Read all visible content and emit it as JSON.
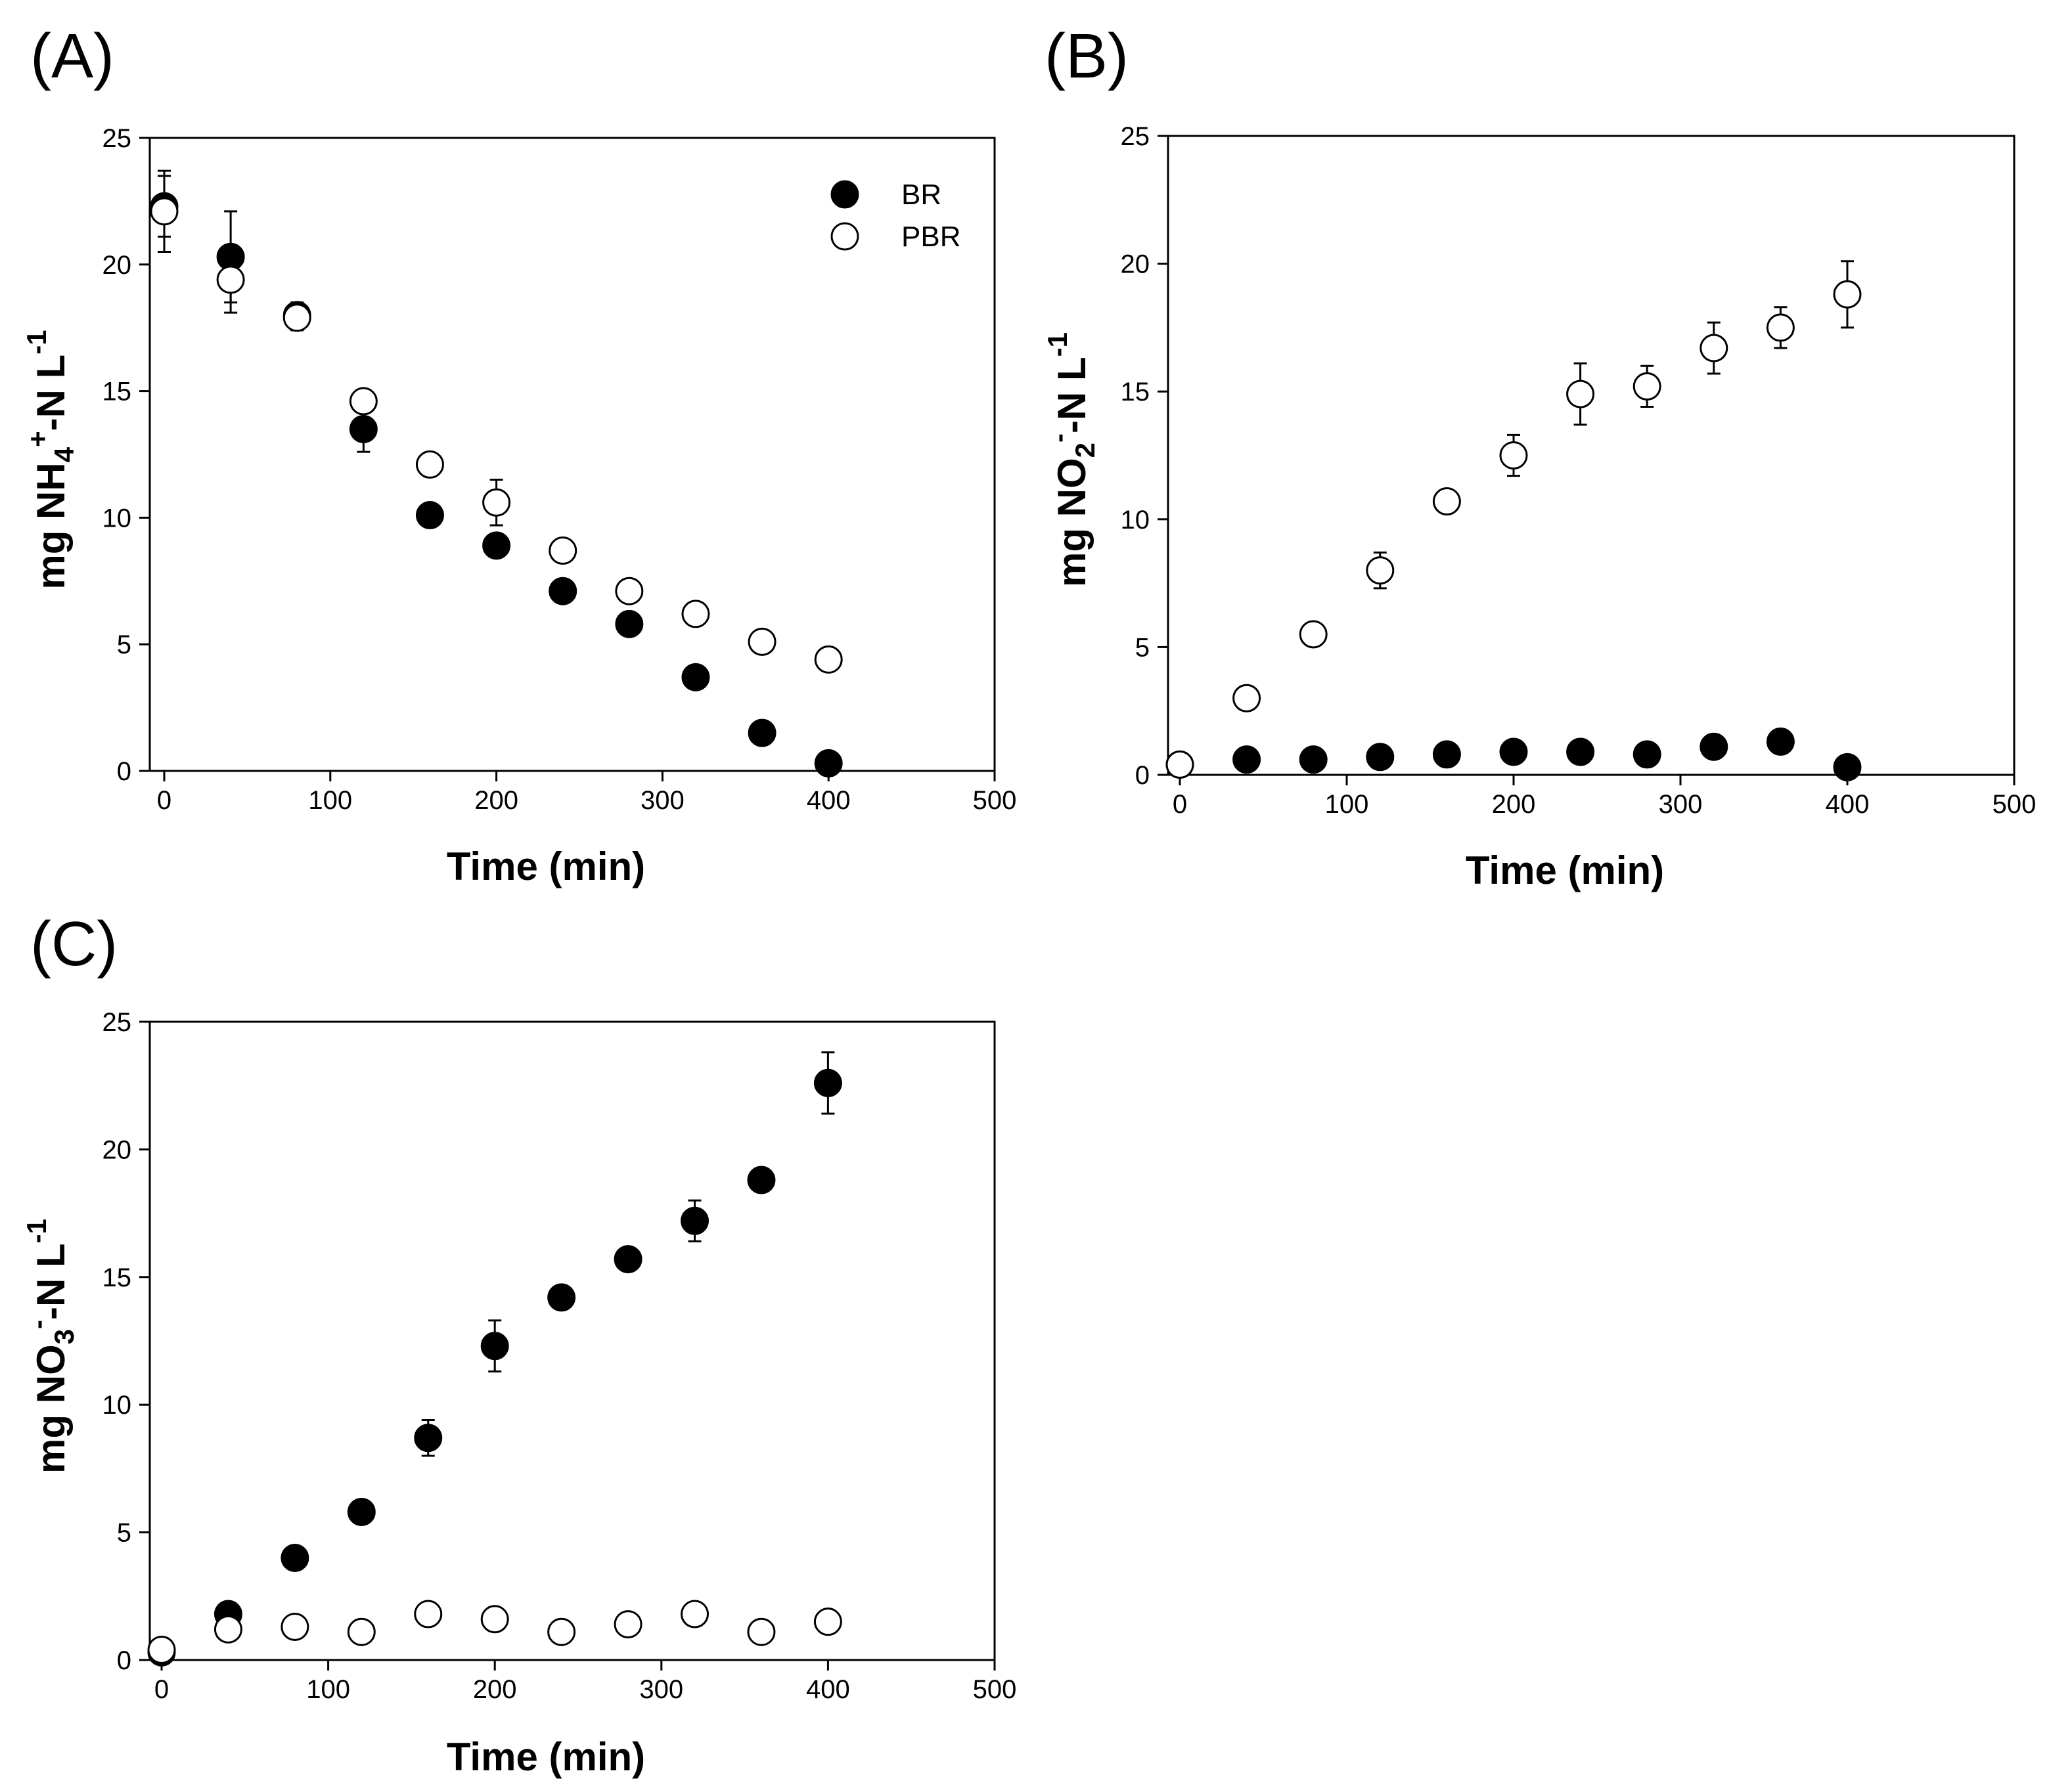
{
  "chart_data": [
    {
      "type": "scatter",
      "panel_label": "(A)",
      "xlabel": "Time (min)",
      "ylabel": {
        "prefix": "mg NH",
        "sub": "4",
        "sup": "+",
        "mid": "-N L",
        "sup2": "-1"
      },
      "xlim": [
        0,
        500
      ],
      "ylim": [
        0,
        25
      ],
      "xticks": [
        "0",
        "100",
        "200",
        "300",
        "400",
        "500"
      ],
      "yticks": [
        "0",
        "5",
        "10",
        "15",
        "20",
        "25"
      ],
      "legend": {
        "position": "top-right",
        "entries": [
          "BR",
          "PBR"
        ]
      },
      "series": [
        {
          "name": "BR",
          "marker": "filled-circle",
          "x": [
            0,
            40,
            80,
            120,
            160,
            200,
            240,
            280,
            320,
            360,
            400
          ],
          "y": [
            22.3,
            20.3,
            18.0,
            13.5,
            10.1,
            8.9,
            7.1,
            5.8,
            3.7,
            1.5,
            0.3
          ],
          "err": [
            1.2,
            1.8,
            0.5,
            0.9,
            0,
            0,
            0,
            0,
            0,
            0,
            0
          ]
        },
        {
          "name": "PBR",
          "marker": "open-circle",
          "x": [
            0,
            40,
            80,
            120,
            160,
            200,
            240,
            280,
            320,
            360,
            400
          ],
          "y": [
            22.1,
            19.4,
            17.9,
            14.6,
            12.1,
            10.6,
            8.7,
            7.1,
            6.2,
            5.1,
            4.4
          ],
          "err": [
            1.6,
            1.3,
            0.5,
            0,
            0,
            0.9,
            0,
            0,
            0,
            0,
            0
          ]
        }
      ]
    },
    {
      "type": "scatter",
      "panel_label": "(B)",
      "xlabel": "Time (min)",
      "ylabel": {
        "prefix": "mg NO",
        "sub": "2",
        "sup": "-",
        "mid": "-N L",
        "sup2": "-1"
      },
      "xlim": [
        0,
        500
      ],
      "ylim": [
        0,
        25
      ],
      "xticks": [
        "0",
        "100",
        "200",
        "300",
        "400",
        "500"
      ],
      "yticks": [
        "0",
        "5",
        "10",
        "15",
        "20",
        "25"
      ],
      "series": [
        {
          "name": "BR",
          "marker": "filled-circle",
          "x": [
            0,
            40,
            80,
            120,
            160,
            200,
            240,
            280,
            320,
            360,
            400
          ],
          "y": [
            0.4,
            0.6,
            0.6,
            0.7,
            0.8,
            0.9,
            0.9,
            0.8,
            1.1,
            1.3,
            0.3
          ],
          "err": [
            0,
            0,
            0,
            0,
            0,
            0,
            0,
            0,
            0,
            0,
            0
          ]
        },
        {
          "name": "PBR",
          "marker": "open-circle",
          "x": [
            0,
            40,
            80,
            120,
            160,
            200,
            240,
            280,
            320,
            360,
            400
          ],
          "y": [
            0.4,
            3.0,
            5.5,
            8.0,
            10.7,
            12.5,
            14.9,
            15.2,
            16.7,
            17.5,
            18.8
          ],
          "err": [
            0,
            0,
            0,
            0.7,
            0,
            0.8,
            1.2,
            0.8,
            1.0,
            0.8,
            1.3
          ]
        }
      ]
    },
    {
      "type": "scatter",
      "panel_label": "(C)",
      "xlabel": "Time (min)",
      "ylabel": {
        "prefix": "mg NO",
        "sub": "3",
        "sup": "-",
        "mid": "-N L",
        "sup2": "-1"
      },
      "xlim": [
        0,
        500
      ],
      "ylim": [
        0,
        25
      ],
      "xticks": [
        "0",
        "100",
        "200",
        "300",
        "400",
        "500"
      ],
      "yticks": [
        "0",
        "5",
        "10",
        "15",
        "20",
        "25"
      ],
      "series": [
        {
          "name": "BR",
          "marker": "filled-circle",
          "x": [
            0,
            40,
            80,
            120,
            160,
            200,
            240,
            280,
            320,
            360,
            400
          ],
          "y": [
            0.3,
            1.8,
            4.0,
            5.8,
            8.7,
            12.3,
            14.2,
            15.7,
            17.2,
            18.8,
            22.6
          ],
          "err": [
            0,
            0,
            0,
            0,
            0.7,
            1.0,
            0,
            0,
            0.8,
            0,
            1.2
          ]
        },
        {
          "name": "PBR",
          "marker": "open-circle",
          "x": [
            0,
            40,
            80,
            120,
            160,
            200,
            240,
            280,
            320,
            360,
            400
          ],
          "y": [
            0.4,
            1.2,
            1.3,
            1.1,
            1.8,
            1.6,
            1.1,
            1.4,
            1.8,
            1.1,
            1.5
          ],
          "err": [
            0,
            0,
            0,
            0,
            0,
            0,
            0,
            0,
            0,
            0,
            0
          ]
        }
      ]
    }
  ]
}
